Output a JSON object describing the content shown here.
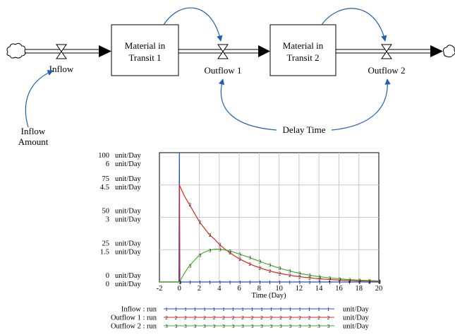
{
  "diagram": {
    "stocks": [
      {
        "name": "Material in",
        "name2": "Transit 1"
      },
      {
        "name": "Material in",
        "name2": "Transit 2"
      }
    ],
    "flows": [
      "Inflow",
      "Outflow 1",
      "Outflow 2"
    ],
    "auxiliaries": {
      "inflow_amount": {
        "line1": "Inflow",
        "line2": "Amount"
      },
      "delay_time": "Delay Time"
    },
    "colors": {
      "link": "#1f5fb5",
      "pipe": "#000000"
    }
  },
  "chart_data": {
    "type": "line",
    "xlabel": "Time (Day)",
    "x_ticks": [
      "-2",
      "0",
      "2",
      "4",
      "6",
      "8",
      "10",
      "12",
      "14",
      "16",
      "18",
      "20"
    ],
    "xlim": [
      -2,
      20
    ],
    "y_axes": [
      {
        "unit": "unit/Day",
        "ticks": [
          "100",
          "75",
          "50",
          "25",
          "0"
        ],
        "range": [
          0,
          100
        ]
      },
      {
        "unit": "unit/Day",
        "ticks": [
          "6",
          "4.5",
          "3",
          "1.5",
          "0"
        ],
        "range": [
          0,
          6
        ]
      }
    ],
    "series": [
      {
        "name": "Inflow : run",
        "unit": "unit/Day",
        "color": "#1f4fd1",
        "marker": "1",
        "axis": 0,
        "points": [
          [
            -2,
            0
          ],
          [
            -0.05,
            0
          ],
          [
            0,
            100
          ],
          [
            0.05,
            0
          ],
          [
            20,
            0
          ]
        ]
      },
      {
        "name": "Outflow 1 : run",
        "unit": "unit/Day",
        "color": "#e0241b",
        "marker": "2",
        "axis": 1,
        "points": [
          [
            -2,
            0
          ],
          [
            0,
            0
          ],
          [
            0,
            4.5
          ],
          [
            0.5,
            4.0
          ],
          [
            1,
            3.6
          ],
          [
            1.5,
            3.2
          ],
          [
            2,
            2.8
          ],
          [
            2.5,
            2.5
          ],
          [
            3,
            2.2
          ],
          [
            3.5,
            2.0
          ],
          [
            4,
            1.75
          ],
          [
            4.5,
            1.55
          ],
          [
            5,
            1.38
          ],
          [
            5.5,
            1.22
          ],
          [
            6,
            1.08
          ],
          [
            6.5,
            0.96
          ],
          [
            7,
            0.85
          ],
          [
            7.5,
            0.75
          ],
          [
            8,
            0.67
          ],
          [
            8.5,
            0.59
          ],
          [
            9,
            0.52
          ],
          [
            9.5,
            0.46
          ],
          [
            10,
            0.41
          ],
          [
            10.5,
            0.36
          ],
          [
            11,
            0.32
          ],
          [
            11.5,
            0.28
          ],
          [
            12,
            0.25
          ],
          [
            12.5,
            0.22
          ],
          [
            13,
            0.2
          ],
          [
            13.5,
            0.17
          ],
          [
            14,
            0.15
          ],
          [
            14.5,
            0.13
          ],
          [
            15,
            0.12
          ],
          [
            15.5,
            0.1
          ],
          [
            16,
            0.09
          ],
          [
            16.5,
            0.08
          ],
          [
            17,
            0.07
          ],
          [
            17.5,
            0.06
          ],
          [
            18,
            0.05
          ],
          [
            18.5,
            0.05
          ],
          [
            19,
            0.04
          ],
          [
            19.5,
            0.04
          ],
          [
            20,
            0.03
          ]
        ]
      },
      {
        "name": "Outflow 2 : run",
        "unit": "unit/Day",
        "color": "#3fb227",
        "marker": "3",
        "axis": 1,
        "points": [
          [
            -2,
            0
          ],
          [
            0,
            0
          ],
          [
            0.5,
            0.4
          ],
          [
            1,
            0.75
          ],
          [
            1.5,
            1.0
          ],
          [
            2,
            1.25
          ],
          [
            2.5,
            1.38
          ],
          [
            3,
            1.47
          ],
          [
            3.5,
            1.52
          ],
          [
            4,
            1.52
          ],
          [
            4.5,
            1.49
          ],
          [
            5,
            1.44
          ],
          [
            5.5,
            1.38
          ],
          [
            6,
            1.3
          ],
          [
            6.5,
            1.22
          ],
          [
            7,
            1.14
          ],
          [
            7.5,
            1.05
          ],
          [
            8,
            0.97
          ],
          [
            8.5,
            0.88
          ],
          [
            9,
            0.8
          ],
          [
            9.5,
            0.72
          ],
          [
            10,
            0.65
          ],
          [
            10.5,
            0.58
          ],
          [
            11,
            0.52
          ],
          [
            11.5,
            0.46
          ],
          [
            12,
            0.41
          ],
          [
            12.5,
            0.36
          ],
          [
            13,
            0.32
          ],
          [
            13.5,
            0.28
          ],
          [
            14,
            0.25
          ],
          [
            14.5,
            0.22
          ],
          [
            15,
            0.19
          ],
          [
            15.5,
            0.17
          ],
          [
            16,
            0.15
          ],
          [
            16.5,
            0.13
          ],
          [
            17,
            0.11
          ],
          [
            17.5,
            0.1
          ],
          [
            18,
            0.09
          ],
          [
            18.5,
            0.08
          ],
          [
            19,
            0.07
          ],
          [
            19.5,
            0.06
          ],
          [
            20,
            0.05
          ]
        ]
      }
    ]
  }
}
